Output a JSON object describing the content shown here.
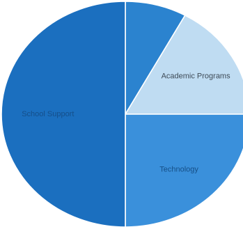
{
  "chart_data": {
    "type": "pie",
    "title": "",
    "categories": [
      "",
      "Academic Programs",
      "Technology",
      "School Support"
    ],
    "values": [
      8,
      17,
      25,
      50
    ],
    "colors": [
      "#2b83cf",
      "#bfdcf2",
      "#3a90db",
      "#1b6fbf"
    ],
    "label_colors": [
      "#ffffff",
      "#3d4a56",
      "#164f87",
      "#154f8a"
    ]
  }
}
